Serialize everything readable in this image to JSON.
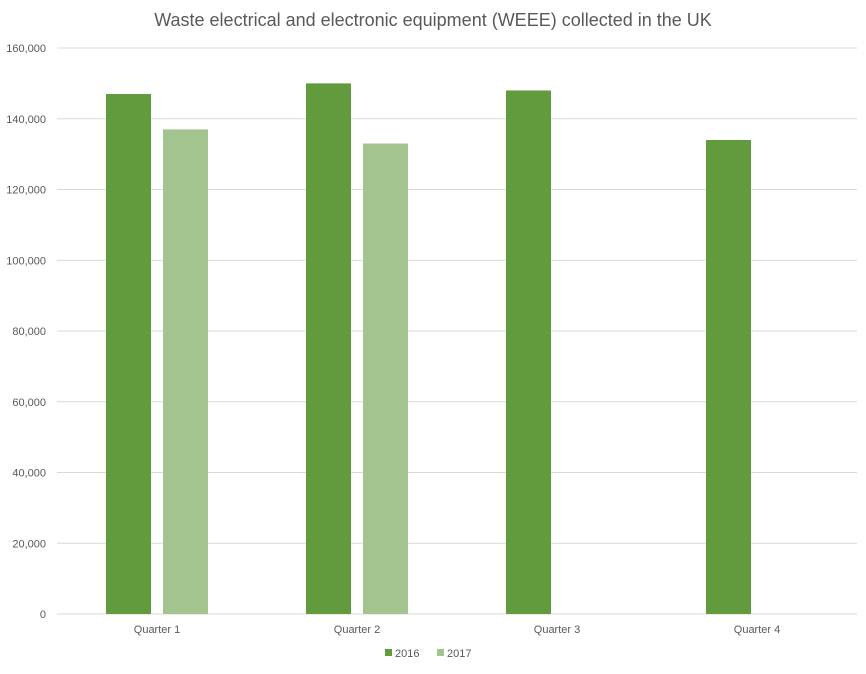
{
  "chart_data": {
    "type": "bar",
    "title": "Waste electrical and electronic equipment (WEEE) collected in the UK",
    "categories": [
      "Quarter 1",
      "Quarter 2",
      "Quarter 3",
      "Quarter 4"
    ],
    "series": [
      {
        "name": "2016",
        "values": [
          147000,
          150000,
          148000,
          134000
        ],
        "color": "#629b3e"
      },
      {
        "name": "2017",
        "values": [
          137000,
          133000,
          null,
          null
        ],
        "color": "#a3c48e"
      }
    ],
    "xlabel": "",
    "ylabel": "",
    "ylim": [
      0,
      160000
    ],
    "yticks": [
      0,
      20000,
      40000,
      60000,
      80000,
      100000,
      120000,
      140000,
      160000
    ],
    "ytick_labels": [
      "0",
      "20,000",
      "40,000",
      "60,000",
      "80,000",
      "100,000",
      "120,000",
      "140,000",
      "160,000"
    ],
    "grid": true,
    "legend_position": "bottom"
  }
}
